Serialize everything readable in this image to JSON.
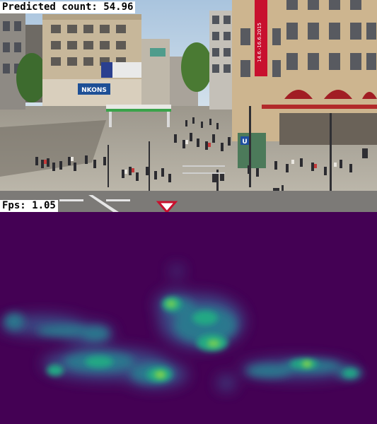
{
  "overlay": {
    "predicted_count_text": "Predicted count: 54.96",
    "fps_text": "Fps: 1.05"
  },
  "camera_view": {
    "signs": {
      "store_sign": "NKONS",
      "tall_banner": "14.6.-16.6.2015",
      "ubahn_sign": "U"
    }
  },
  "heatmap": {
    "colormap": "viridis",
    "background": "#440154"
  },
  "colors": {
    "label_bg": "#ffffff",
    "label_text": "#000000",
    "sky": "#bcd3e6",
    "plaza": "#b7b1a3",
    "heat_low": "#440154",
    "heat_mid": "#21918c",
    "heat_high": "#5ec962",
    "heat_peak": "#a5db36"
  }
}
